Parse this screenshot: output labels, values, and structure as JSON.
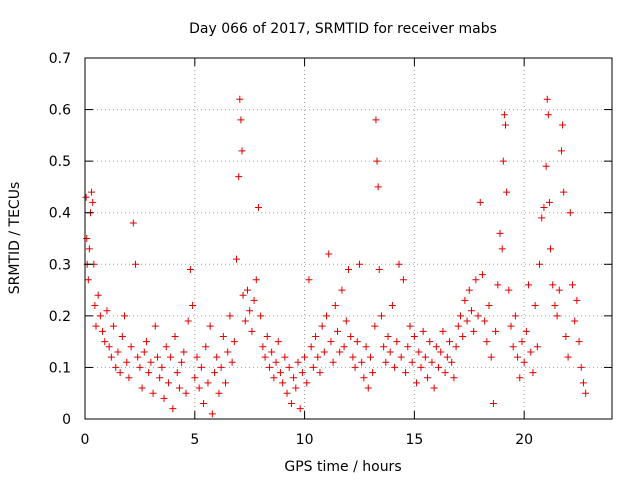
{
  "chart_data": {
    "type": "scatter",
    "title": "Day 066 of 2017, SRMTID for receiver mabs",
    "xlabel": "GPS time / hours",
    "ylabel": "SRMTID / TECUs",
    "xlim": [
      0,
      24
    ],
    "ylim": [
      0,
      0.7
    ],
    "xticks": [
      0,
      5,
      10,
      15,
      20
    ],
    "xtick_labels": [
      "0",
      "5",
      "10",
      "15",
      "20"
    ],
    "yticks": [
      0,
      0.1,
      0.2,
      0.3,
      0.4,
      0.5,
      0.6,
      0.7
    ],
    "ytick_labels": [
      "0",
      "0.1",
      "0.2",
      "0.3",
      "0.4",
      "0.5",
      "0.6",
      "0.7"
    ],
    "grid": true,
    "marker": "+",
    "series": [
      {
        "name": "SRMTID",
        "color": "#e00000",
        "points": [
          [
            0.05,
            0.43
          ],
          [
            0.08,
            0.35
          ],
          [
            0.1,
            0.3
          ],
          [
            0.15,
            0.27
          ],
          [
            0.2,
            0.33
          ],
          [
            0.25,
            0.4
          ],
          [
            0.3,
            0.44
          ],
          [
            0.35,
            0.42
          ],
          [
            0.4,
            0.3
          ],
          [
            0.45,
            0.22
          ],
          [
            0.5,
            0.18
          ],
          [
            0.6,
            0.24
          ],
          [
            0.7,
            0.2
          ],
          [
            0.8,
            0.17
          ],
          [
            0.9,
            0.15
          ],
          [
            1.0,
            0.21
          ],
          [
            1.1,
            0.14
          ],
          [
            1.2,
            0.12
          ],
          [
            1.3,
            0.18
          ],
          [
            1.4,
            0.1
          ],
          [
            1.5,
            0.13
          ],
          [
            1.6,
            0.09
          ],
          [
            1.7,
            0.16
          ],
          [
            1.8,
            0.2
          ],
          [
            1.9,
            0.11
          ],
          [
            2.0,
            0.08
          ],
          [
            2.1,
            0.14
          ],
          [
            2.2,
            0.38
          ],
          [
            2.3,
            0.3
          ],
          [
            2.4,
            0.12
          ],
          [
            2.5,
            0.1
          ],
          [
            2.6,
            0.06
          ],
          [
            2.7,
            0.13
          ],
          [
            2.8,
            0.15
          ],
          [
            2.9,
            0.09
          ],
          [
            3.0,
            0.11
          ],
          [
            3.1,
            0.05
          ],
          [
            3.2,
            0.18
          ],
          [
            3.3,
            0.12
          ],
          [
            3.4,
            0.08
          ],
          [
            3.5,
            0.1
          ],
          [
            3.6,
            0.04
          ],
          [
            3.7,
            0.14
          ],
          [
            3.8,
            0.07
          ],
          [
            3.9,
            0.12
          ],
          [
            4.0,
            0.02
          ],
          [
            4.1,
            0.16
          ],
          [
            4.2,
            0.09
          ],
          [
            4.3,
            0.06
          ],
          [
            4.4,
            0.11
          ],
          [
            4.5,
            0.13
          ],
          [
            4.6,
            0.05
          ],
          [
            4.7,
            0.19
          ],
          [
            4.8,
            0.29
          ],
          [
            4.9,
            0.22
          ],
          [
            5.0,
            0.08
          ],
          [
            5.1,
            0.12
          ],
          [
            5.2,
            0.06
          ],
          [
            5.3,
            0.1
          ],
          [
            5.4,
            0.03
          ],
          [
            5.5,
            0.14
          ],
          [
            5.6,
            0.07
          ],
          [
            5.7,
            0.18
          ],
          [
            5.8,
            0.01
          ],
          [
            5.9,
            0.09
          ],
          [
            6.0,
            0.12
          ],
          [
            6.1,
            0.05
          ],
          [
            6.2,
            0.1
          ],
          [
            6.3,
            0.16
          ],
          [
            6.4,
            0.07
          ],
          [
            6.5,
            0.13
          ],
          [
            6.6,
            0.2
          ],
          [
            6.7,
            0.11
          ],
          [
            6.8,
            0.15
          ],
          [
            6.9,
            0.31
          ],
          [
            7.0,
            0.47
          ],
          [
            7.05,
            0.62
          ],
          [
            7.1,
            0.58
          ],
          [
            7.15,
            0.52
          ],
          [
            7.2,
            0.24
          ],
          [
            7.3,
            0.19
          ],
          [
            7.4,
            0.25
          ],
          [
            7.5,
            0.21
          ],
          [
            7.6,
            0.17
          ],
          [
            7.7,
            0.23
          ],
          [
            7.8,
            0.27
          ],
          [
            7.9,
            0.41
          ],
          [
            8.0,
            0.2
          ],
          [
            8.1,
            0.14
          ],
          [
            8.2,
            0.12
          ],
          [
            8.3,
            0.16
          ],
          [
            8.4,
            0.1
          ],
          [
            8.5,
            0.13
          ],
          [
            8.6,
            0.08
          ],
          [
            8.7,
            0.11
          ],
          [
            8.8,
            0.15
          ],
          [
            8.9,
            0.09
          ],
          [
            9.0,
            0.07
          ],
          [
            9.1,
            0.12
          ],
          [
            9.2,
            0.05
          ],
          [
            9.3,
            0.1
          ],
          [
            9.4,
            0.03
          ],
          [
            9.5,
            0.08
          ],
          [
            9.6,
            0.06
          ],
          [
            9.7,
            0.11
          ],
          [
            9.8,
            0.02
          ],
          [
            9.9,
            0.09
          ],
          [
            10.0,
            0.12
          ],
          [
            10.1,
            0.07
          ],
          [
            10.2,
            0.27
          ],
          [
            10.3,
            0.14
          ],
          [
            10.4,
            0.1
          ],
          [
            10.5,
            0.16
          ],
          [
            10.6,
            0.12
          ],
          [
            10.7,
            0.09
          ],
          [
            10.8,
            0.18
          ],
          [
            10.9,
            0.13
          ],
          [
            11.0,
            0.2
          ],
          [
            11.1,
            0.32
          ],
          [
            11.2,
            0.15
          ],
          [
            11.3,
            0.11
          ],
          [
            11.4,
            0.22
          ],
          [
            11.5,
            0.17
          ],
          [
            11.6,
            0.13
          ],
          [
            11.7,
            0.25
          ],
          [
            11.8,
            0.14
          ],
          [
            11.9,
            0.19
          ],
          [
            12.0,
            0.29
          ],
          [
            12.1,
            0.16
          ],
          [
            12.2,
            0.12
          ],
          [
            12.3,
            0.1
          ],
          [
            12.4,
            0.15
          ],
          [
            12.5,
            0.3
          ],
          [
            12.6,
            0.11
          ],
          [
            12.7,
            0.08
          ],
          [
            12.8,
            0.14
          ],
          [
            12.9,
            0.06
          ],
          [
            13.0,
            0.12
          ],
          [
            13.1,
            0.09
          ],
          [
            13.2,
            0.18
          ],
          [
            13.25,
            0.58
          ],
          [
            13.3,
            0.5
          ],
          [
            13.35,
            0.45
          ],
          [
            13.4,
            0.29
          ],
          [
            13.5,
            0.2
          ],
          [
            13.6,
            0.14
          ],
          [
            13.7,
            0.11
          ],
          [
            13.8,
            0.16
          ],
          [
            13.9,
            0.13
          ],
          [
            14.0,
            0.22
          ],
          [
            14.1,
            0.1
          ],
          [
            14.2,
            0.15
          ],
          [
            14.3,
            0.3
          ],
          [
            14.4,
            0.12
          ],
          [
            14.5,
            0.27
          ],
          [
            14.6,
            0.09
          ],
          [
            14.7,
            0.14
          ],
          [
            14.8,
            0.18
          ],
          [
            14.9,
            0.11
          ],
          [
            15.0,
            0.16
          ],
          [
            15.1,
            0.07
          ],
          [
            15.2,
            0.13
          ],
          [
            15.3,
            0.1
          ],
          [
            15.4,
            0.17
          ],
          [
            15.5,
            0.12
          ],
          [
            15.6,
            0.08
          ],
          [
            15.7,
            0.15
          ],
          [
            15.8,
            0.11
          ],
          [
            15.9,
            0.06
          ],
          [
            16.0,
            0.14
          ],
          [
            16.1,
            0.1
          ],
          [
            16.2,
            0.13
          ],
          [
            16.3,
            0.17
          ],
          [
            16.4,
            0.09
          ],
          [
            16.5,
            0.12
          ],
          [
            16.6,
            0.15
          ],
          [
            16.7,
            0.11
          ],
          [
            16.8,
            0.08
          ],
          [
            16.9,
            0.14
          ],
          [
            17.0,
            0.18
          ],
          [
            17.1,
            0.2
          ],
          [
            17.2,
            0.16
          ],
          [
            17.3,
            0.23
          ],
          [
            17.4,
            0.19
          ],
          [
            17.5,
            0.25
          ],
          [
            17.6,
            0.21
          ],
          [
            17.7,
            0.17
          ],
          [
            17.8,
            0.27
          ],
          [
            17.9,
            0.2
          ],
          [
            18.0,
            0.42
          ],
          [
            18.1,
            0.28
          ],
          [
            18.2,
            0.19
          ],
          [
            18.3,
            0.15
          ],
          [
            18.4,
            0.22
          ],
          [
            18.5,
            0.12
          ],
          [
            18.6,
            0.03
          ],
          [
            18.7,
            0.17
          ],
          [
            18.8,
            0.26
          ],
          [
            18.9,
            0.36
          ],
          [
            19.0,
            0.33
          ],
          [
            19.05,
            0.5
          ],
          [
            19.1,
            0.59
          ],
          [
            19.15,
            0.57
          ],
          [
            19.2,
            0.44
          ],
          [
            19.3,
            0.25
          ],
          [
            19.4,
            0.18
          ],
          [
            19.5,
            0.14
          ],
          [
            19.6,
            0.2
          ],
          [
            19.7,
            0.12
          ],
          [
            19.8,
            0.08
          ],
          [
            19.9,
            0.15
          ],
          [
            20.0,
            0.11
          ],
          [
            20.1,
            0.17
          ],
          [
            20.2,
            0.26
          ],
          [
            20.3,
            0.13
          ],
          [
            20.4,
            0.09
          ],
          [
            20.5,
            0.22
          ],
          [
            20.6,
            0.14
          ],
          [
            20.7,
            0.3
          ],
          [
            20.8,
            0.39
          ],
          [
            20.9,
            0.41
          ],
          [
            21.0,
            0.49
          ],
          [
            21.05,
            0.62
          ],
          [
            21.1,
            0.59
          ],
          [
            21.15,
            0.42
          ],
          [
            21.2,
            0.33
          ],
          [
            21.3,
            0.26
          ],
          [
            21.4,
            0.22
          ],
          [
            21.5,
            0.2
          ],
          [
            21.6,
            0.25
          ],
          [
            21.7,
            0.52
          ],
          [
            21.75,
            0.57
          ],
          [
            21.8,
            0.44
          ],
          [
            21.9,
            0.16
          ],
          [
            22.0,
            0.12
          ],
          [
            22.1,
            0.4
          ],
          [
            22.2,
            0.26
          ],
          [
            22.3,
            0.19
          ],
          [
            22.4,
            0.23
          ],
          [
            22.5,
            0.15
          ],
          [
            22.6,
            0.1
          ],
          [
            22.7,
            0.07
          ],
          [
            22.8,
            0.05
          ]
        ]
      }
    ]
  }
}
